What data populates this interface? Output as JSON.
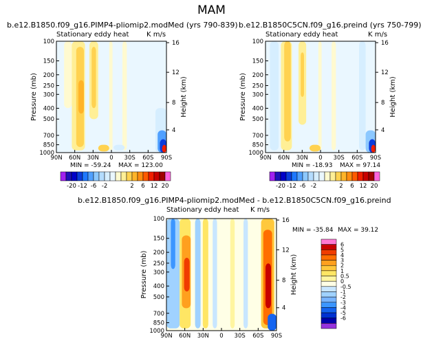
{
  "figure": {
    "title": "MAM"
  },
  "palette_main": [
    "#a020f0",
    "#1e10b8",
    "#0000c8",
    "#0a3cdc",
    "#1e78ff",
    "#50a0ff",
    "#8cc8ff",
    "#b4dcff",
    "#d6eeff",
    "#eaf7ff",
    "#fffad0",
    "#ffef96",
    "#ffd250",
    "#ffb428",
    "#ff8c10",
    "#ff5a00",
    "#f01e00",
    "#c80000",
    "#a00000",
    "#ff64dc"
  ],
  "palette_diff": [
    "#9632dc",
    "#0000aa",
    "#0032d2",
    "#1464f0",
    "#3c96ff",
    "#78b4ff",
    "#a0d2ff",
    "#c8e6ff",
    "#ffffe6",
    "#fff5a0",
    "#ffe664",
    "#ffc83c",
    "#ffa01e",
    "#ff6e00",
    "#f03c00",
    "#c80000",
    "#ff78d2"
  ],
  "chart_data": [
    {
      "type": "heatmap",
      "title": "b.e12.B1850.f09_g16.PIMP4-pliomip2.modMed (yrs 790-839)",
      "subtitle_left": "Stationary eddy heat",
      "units": "K m/s",
      "xlabel": "",
      "ylabel": "Pressure (mb)",
      "ylabel_right": "Height (km)",
      "x_ticks": [
        "90N",
        "60N",
        "30N",
        "0",
        "30S",
        "60S",
        "90S"
      ],
      "y_ticks": [
        "100",
        "150",
        "200",
        "250",
        "300",
        "400",
        "500",
        "700",
        "850",
        "1000"
      ],
      "height_ticks": [
        "16",
        "12",
        "8",
        "4"
      ],
      "min_label": "MIN = -59.24",
      "max_label": "MAX = 123.00",
      "colorbar_labels": [
        "-20",
        "-12",
        "-6",
        "-2",
        "2",
        "6",
        "12",
        "20"
      ]
    },
    {
      "type": "heatmap",
      "title": "b.e12.B1850C5CN.f09_g16.preind (yrs 750-799)",
      "subtitle_left": "Stationary eddy heat",
      "units": "K m/s",
      "xlabel": "",
      "ylabel": "Pressure (mb)",
      "ylabel_right": "Height (km)",
      "x_ticks": [
        "90N",
        "60N",
        "30N",
        "0",
        "30S",
        "60S",
        "90S"
      ],
      "y_ticks": [
        "100",
        "150",
        "200",
        "250",
        "300",
        "400",
        "500",
        "700",
        "850",
        "1000"
      ],
      "height_ticks": [
        "16",
        "12",
        "8",
        "4"
      ],
      "min_label": "MIN = -18.93",
      "max_label": "MAX = 97.14",
      "colorbar_labels": [
        "-20",
        "-12",
        "-6",
        "-2",
        "2",
        "6",
        "12",
        "20"
      ]
    },
    {
      "type": "heatmap",
      "title": "b.e12.B1850.f09_g16.PIMP4-pliomip2.modMed - b.e12.B1850C5CN.f09_g16.preind",
      "subtitle_left": "Stationary eddy heat",
      "units": "K m/s",
      "xlabel": "",
      "ylabel": "Pressure (mb)",
      "ylabel_right": "Height (km)",
      "x_ticks": [
        "90N",
        "60N",
        "30N",
        "0",
        "30S",
        "60S",
        "90S"
      ],
      "y_ticks": [
        "100",
        "150",
        "200",
        "250",
        "300",
        "400",
        "500",
        "700",
        "850",
        "1000"
      ],
      "height_ticks": [
        "16",
        "12",
        "8",
        "4"
      ],
      "min_label": "MIN = -35.84",
      "max_label": "MAX = 39.12",
      "colorbar_labels": [
        "6",
        "5",
        "4",
        "3",
        "2",
        "1",
        "0.5",
        "0",
        "-0.5",
        "-1",
        "-2",
        "-3",
        "-4",
        "-5",
        "-6"
      ]
    }
  ]
}
